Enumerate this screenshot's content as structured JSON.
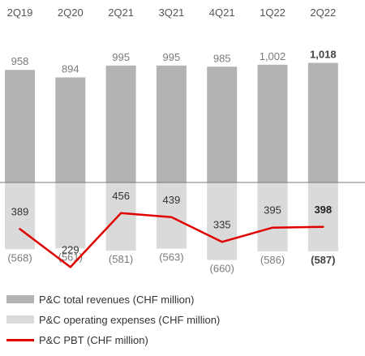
{
  "chart_data": {
    "type": "bar",
    "categories": [
      "2Q19",
      "2Q20",
      "2Q21",
      "3Q21",
      "4Q21",
      "1Q22",
      "2Q22"
    ],
    "series": [
      {
        "name": "P&C total revenues (CHF million)",
        "type": "bar",
        "values": [
          958,
          894,
          995,
          995,
          985,
          1002,
          1018
        ],
        "labels": [
          "958",
          "894",
          "995",
          "995",
          "985",
          "1,002",
          "1,018"
        ]
      },
      {
        "name": "P&C operating expenses (CHF million)",
        "type": "bar",
        "values": [
          -568,
          -561,
          -581,
          -563,
          -660,
          -586,
          -587
        ],
        "labels": [
          "(568)",
          "(561)",
          "(581)",
          "(563)",
          "(660)",
          "(586)",
          "(587)"
        ]
      },
      {
        "name": "P&C PBT (CHF million)",
        "type": "line",
        "values": [
          389,
          229,
          456,
          439,
          335,
          395,
          398
        ],
        "labels": [
          "389",
          "229",
          "456",
          "439",
          "335",
          "395",
          "398"
        ]
      }
    ],
    "highlight_category": "2Q22",
    "legend_position": "bottom-left",
    "grid": false
  },
  "colors": {
    "revenue_bar": "#b3b3b3",
    "expense_bar": "#dadada",
    "pbt_line": "#e00000",
    "text": "#555555",
    "text_muted": "#7a7a7a",
    "text_bold": "#222222",
    "zero_line": "#7a7a7a"
  }
}
